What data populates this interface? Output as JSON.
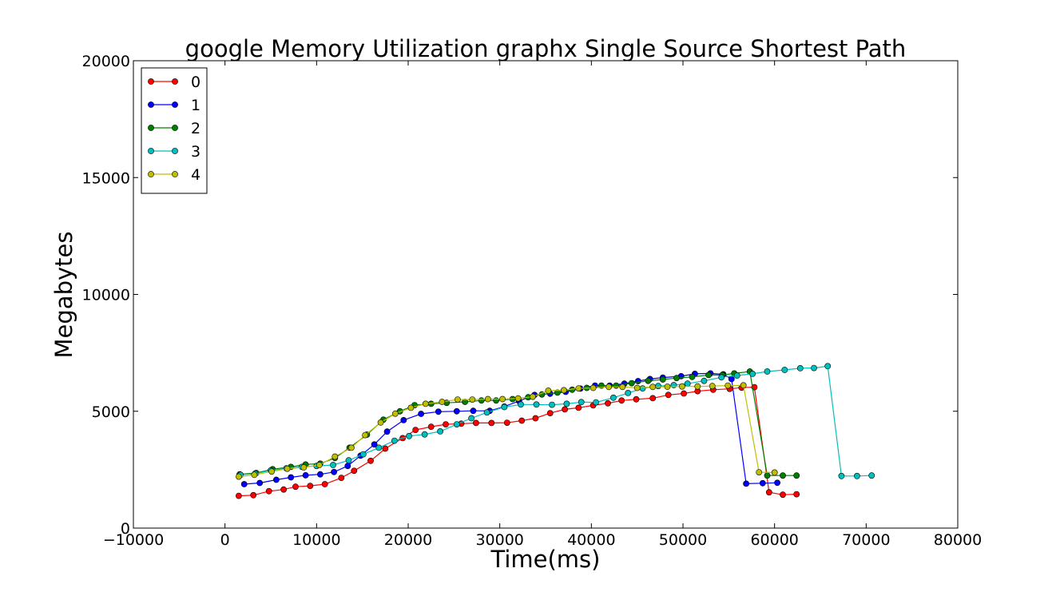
{
  "chart_data": {
    "type": "line",
    "title": "google Memory Utilization graphx Single Source Shortest Path",
    "xlabel": "Time(ms)",
    "ylabel": "Megabytes",
    "xlim": [
      -10000,
      80000
    ],
    "ylim": [
      0,
      20000
    ],
    "xticks": [
      -10000,
      0,
      10000,
      20000,
      30000,
      40000,
      50000,
      60000,
      70000,
      80000
    ],
    "xtick_labels": [
      "−10000",
      "0",
      "10000",
      "20000",
      "30000",
      "40000",
      "50000",
      "60000",
      "70000",
      "80000"
    ],
    "yticks": [
      0,
      5000,
      10000,
      15000,
      20000
    ],
    "ytick_labels": [
      "0",
      "5000",
      "10000",
      "15000",
      "20000"
    ],
    "grid": false,
    "legend_position": "top-left",
    "series": [
      {
        "name": "0",
        "color": "#ff0000",
        "points": [
          [
            1500,
            1380
          ],
          [
            3100,
            1410
          ],
          [
            4800,
            1580
          ],
          [
            6400,
            1650
          ],
          [
            7700,
            1770
          ],
          [
            9300,
            1810
          ],
          [
            10900,
            1880
          ],
          [
            12700,
            2150
          ],
          [
            14100,
            2450
          ],
          [
            15900,
            2880
          ],
          [
            17500,
            3400
          ],
          [
            19400,
            3850
          ],
          [
            20800,
            4200
          ],
          [
            22500,
            4340
          ],
          [
            24100,
            4440
          ],
          [
            25800,
            4470
          ],
          [
            27400,
            4500
          ],
          [
            29100,
            4500
          ],
          [
            30800,
            4510
          ],
          [
            32400,
            4600
          ],
          [
            33900,
            4700
          ],
          [
            35500,
            4920
          ],
          [
            37100,
            5080
          ],
          [
            38600,
            5150
          ],
          [
            40200,
            5250
          ],
          [
            41800,
            5340
          ],
          [
            43300,
            5460
          ],
          [
            44900,
            5510
          ],
          [
            46700,
            5560
          ],
          [
            48400,
            5700
          ],
          [
            50100,
            5760
          ],
          [
            51600,
            5860
          ],
          [
            53300,
            5920
          ],
          [
            55100,
            5960
          ],
          [
            56400,
            6010
          ],
          [
            57800,
            6030
          ],
          [
            59400,
            1530
          ],
          [
            60900,
            1430
          ],
          [
            62400,
            1450
          ]
        ]
      },
      {
        "name": "1",
        "color": "#0000ff",
        "points": [
          [
            2100,
            1880
          ],
          [
            3800,
            1930
          ],
          [
            5600,
            2070
          ],
          [
            7200,
            2170
          ],
          [
            8800,
            2260
          ],
          [
            10400,
            2300
          ],
          [
            11900,
            2400
          ],
          [
            13400,
            2660
          ],
          [
            14800,
            3100
          ],
          [
            16300,
            3580
          ],
          [
            17700,
            4130
          ],
          [
            19500,
            4620
          ],
          [
            21400,
            4890
          ],
          [
            23300,
            4980
          ],
          [
            25300,
            5000
          ],
          [
            27100,
            5020
          ],
          [
            28900,
            5020
          ],
          [
            30500,
            5200
          ],
          [
            32100,
            5440
          ],
          [
            33800,
            5700
          ],
          [
            35500,
            5750
          ],
          [
            37200,
            5830
          ],
          [
            38800,
            5970
          ],
          [
            40400,
            6100
          ],
          [
            42000,
            6100
          ],
          [
            43600,
            6180
          ],
          [
            45100,
            6290
          ],
          [
            46400,
            6380
          ],
          [
            47800,
            6440
          ],
          [
            49800,
            6500
          ],
          [
            51300,
            6600
          ],
          [
            53000,
            6620
          ],
          [
            54400,
            6580
          ],
          [
            55300,
            6380
          ],
          [
            56900,
            1900
          ],
          [
            58700,
            1920
          ],
          [
            60300,
            1940
          ]
        ]
      },
      {
        "name": "2",
        "color": "#008000",
        "points": [
          [
            1600,
            2300
          ],
          [
            3400,
            2360
          ],
          [
            5200,
            2520
          ],
          [
            7200,
            2620
          ],
          [
            8800,
            2720
          ],
          [
            10400,
            2760
          ],
          [
            12000,
            3000
          ],
          [
            13600,
            3440
          ],
          [
            15500,
            4000
          ],
          [
            17300,
            4640
          ],
          [
            19100,
            5000
          ],
          [
            20700,
            5260
          ],
          [
            22500,
            5320
          ],
          [
            24200,
            5360
          ],
          [
            26200,
            5400
          ],
          [
            28000,
            5460
          ],
          [
            29600,
            5460
          ],
          [
            31400,
            5520
          ],
          [
            33100,
            5600
          ],
          [
            34600,
            5720
          ],
          [
            36300,
            5800
          ],
          [
            37900,
            5920
          ],
          [
            39500,
            6000
          ],
          [
            41100,
            6100
          ],
          [
            42700,
            6100
          ],
          [
            44400,
            6200
          ],
          [
            46200,
            6300
          ],
          [
            47800,
            6360
          ],
          [
            49300,
            6420
          ],
          [
            51000,
            6470
          ],
          [
            52800,
            6550
          ],
          [
            54300,
            6550
          ],
          [
            55600,
            6620
          ],
          [
            57300,
            6700
          ],
          [
            59200,
            2250
          ],
          [
            60900,
            2250
          ],
          [
            62400,
            2250
          ]
        ]
      },
      {
        "name": "3",
        "color": "#00bfbf",
        "points": [
          [
            1700,
            2280
          ],
          [
            3300,
            2330
          ],
          [
            5000,
            2470
          ],
          [
            6700,
            2560
          ],
          [
            8400,
            2620
          ],
          [
            10000,
            2660
          ],
          [
            11800,
            2700
          ],
          [
            13500,
            2900
          ],
          [
            15100,
            3160
          ],
          [
            16800,
            3440
          ],
          [
            18500,
            3740
          ],
          [
            20100,
            3940
          ],
          [
            21800,
            4010
          ],
          [
            23500,
            4140
          ],
          [
            25300,
            4440
          ],
          [
            26900,
            4700
          ],
          [
            28600,
            4950
          ],
          [
            30500,
            5180
          ],
          [
            32300,
            5290
          ],
          [
            34000,
            5290
          ],
          [
            35700,
            5280
          ],
          [
            37300,
            5320
          ],
          [
            38900,
            5390
          ],
          [
            40500,
            5380
          ],
          [
            42400,
            5580
          ],
          [
            44000,
            5780
          ],
          [
            45600,
            5980
          ],
          [
            47300,
            6080
          ],
          [
            49000,
            6120
          ],
          [
            50500,
            6180
          ],
          [
            52300,
            6300
          ],
          [
            54200,
            6450
          ],
          [
            55900,
            6530
          ],
          [
            57600,
            6600
          ],
          [
            59200,
            6700
          ],
          [
            61100,
            6770
          ],
          [
            62800,
            6840
          ],
          [
            64300,
            6850
          ],
          [
            65800,
            6930
          ],
          [
            67300,
            2230
          ],
          [
            69000,
            2230
          ],
          [
            70600,
            2250
          ]
        ]
      },
      {
        "name": "4",
        "color": "#bfbf00",
        "points": [
          [
            1500,
            2200
          ],
          [
            3200,
            2280
          ],
          [
            5100,
            2420
          ],
          [
            6800,
            2540
          ],
          [
            8600,
            2600
          ],
          [
            10300,
            2700
          ],
          [
            12000,
            3060
          ],
          [
            13800,
            3440
          ],
          [
            15300,
            3980
          ],
          [
            17000,
            4520
          ],
          [
            18600,
            4900
          ],
          [
            20300,
            5150
          ],
          [
            21900,
            5320
          ],
          [
            23700,
            5400
          ],
          [
            25400,
            5500
          ],
          [
            27000,
            5500
          ],
          [
            28700,
            5520
          ],
          [
            30300,
            5520
          ],
          [
            32000,
            5550
          ],
          [
            33600,
            5620
          ],
          [
            35300,
            5880
          ],
          [
            37000,
            5900
          ],
          [
            38600,
            5980
          ],
          [
            40200,
            6000
          ],
          [
            41900,
            6040
          ],
          [
            43400,
            6040
          ],
          [
            45000,
            6000
          ],
          [
            46700,
            6040
          ],
          [
            48300,
            6050
          ],
          [
            49900,
            6060
          ],
          [
            51600,
            6060
          ],
          [
            53200,
            6080
          ],
          [
            54900,
            6100
          ],
          [
            56600,
            6110
          ],
          [
            58300,
            2390
          ],
          [
            60000,
            2380
          ]
        ]
      }
    ]
  }
}
